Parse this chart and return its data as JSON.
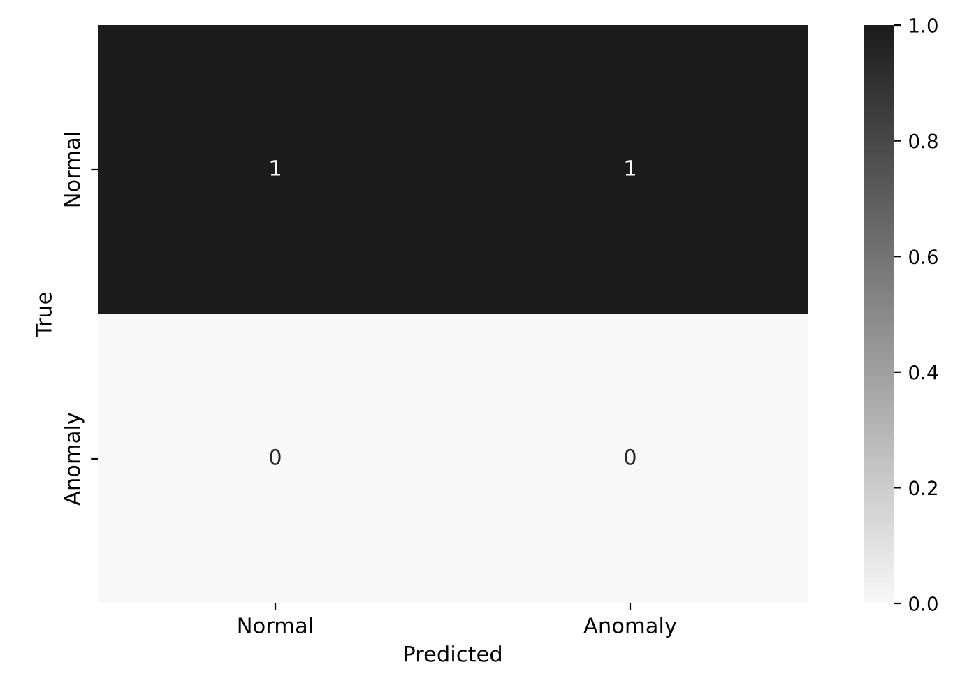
{
  "chart_data": {
    "type": "heatmap",
    "xlabel": "Predicted",
    "ylabel": "True",
    "categories": [
      "Normal",
      "Anomaly"
    ],
    "y_categories": [
      "Normal",
      "Anomaly"
    ],
    "cells": [
      [
        1,
        1
      ],
      [
        0,
        0
      ]
    ],
    "colors": [
      "#f8f8f8",
      "#1c1c1c"
    ],
    "clim": [
      0,
      1
    ],
    "cticks": [
      {
        "value": 0,
        "label": "0.0"
      },
      {
        "value": 0.2,
        "label": "0.2"
      },
      {
        "value": 0.4,
        "label": "0.4"
      },
      {
        "value": 0.6,
        "label": "0.6"
      },
      {
        "value": 0.8,
        "label": "0.8"
      },
      {
        "value": 1,
        "label": "1.0"
      }
    ],
    "data_labels": true
  }
}
